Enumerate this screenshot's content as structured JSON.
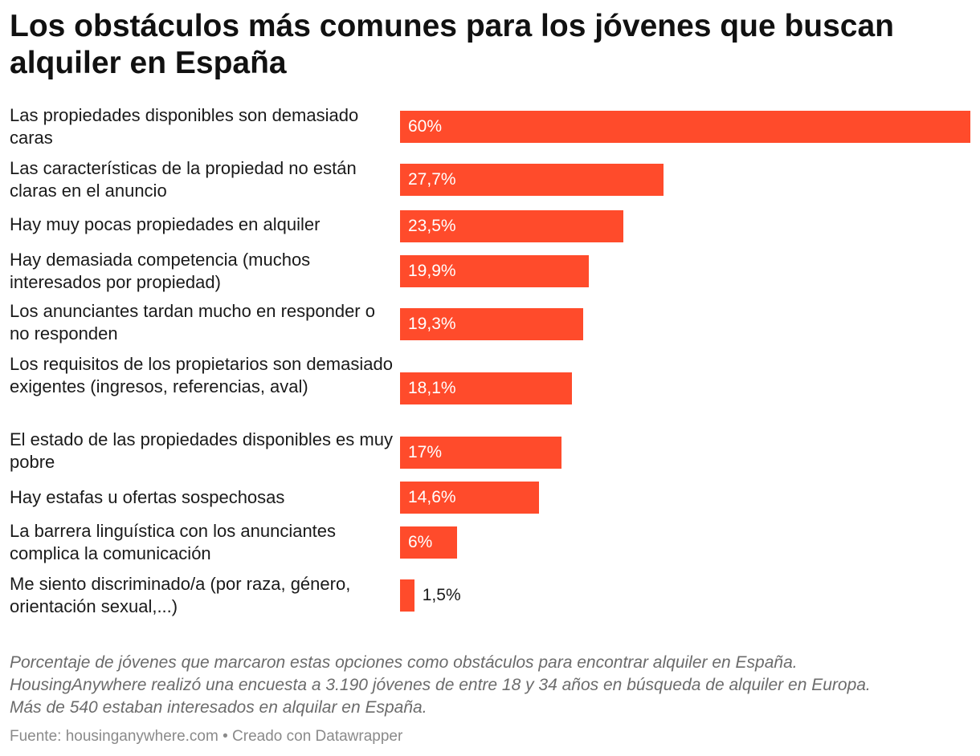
{
  "header": {
    "title": "Los obstáculos más comunes para los jóvenes que buscan alquiler en España"
  },
  "chart_data": {
    "type": "bar",
    "orientation": "horizontal",
    "title": "Los obstáculos más comunes para los jóvenes que buscan alquiler en España",
    "categories": [
      "Las propiedades disponibles son demasiado caras",
      "Las características de la propiedad no están claras en el anuncio",
      "Hay muy pocas propiedades en alquiler",
      "Hay demasiada competencia (muchos interesados por propiedad)",
      "Los anunciantes tardan mucho en responder o no responden",
      "Los requisitos de los propietarios son demasiado exigentes (ingresos, referencias, aval)",
      "El estado de las propiedades disponibles es muy pobre",
      "Hay estafas u ofertas sospechosas",
      "La barrera linguística con los anunciantes complica la comunicación",
      "Me siento discriminado/a (por raza, género, orientación sexual,...)"
    ],
    "values": [
      60,
      27.7,
      23.5,
      19.9,
      19.3,
      18.1,
      17,
      14.6,
      6,
      1.5
    ],
    "value_labels": [
      "60%",
      "27,7%",
      "23,5%",
      "19,9%",
      "19,3%",
      "18,1%",
      "17%",
      "14,6%",
      "6%",
      "1,5%"
    ],
    "unit": "%",
    "xlim": [
      0,
      60
    ],
    "bar_color": "#ff4b2b",
    "xlabel": "",
    "ylabel": "",
    "grid": false
  },
  "notes": {
    "line1": "Porcentaje de jóvenes que marcaron estas opciones como obstáculos para encontrar alquiler en España.",
    "line2": "HousingAnywhere realizó una encuesta a 3.190 jóvenes de entre 18 y 34 años en búsqueda de alquiler en Europa.",
    "line3": "Más de 540 estaban interesados en alquilar en España."
  },
  "footer": {
    "text": "Fuente: housinganywhere.com • Creado con Datawrapper"
  }
}
